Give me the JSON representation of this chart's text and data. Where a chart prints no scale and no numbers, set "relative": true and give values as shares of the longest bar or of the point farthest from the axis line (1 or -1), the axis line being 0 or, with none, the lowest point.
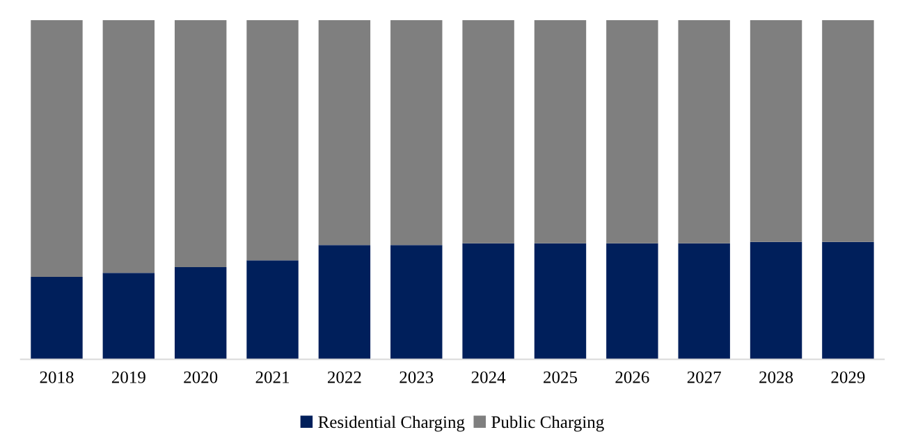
{
  "chart_data": {
    "type": "bar",
    "stacked": true,
    "relative": true,
    "categories": [
      "2018",
      "2019",
      "2020",
      "2021",
      "2022",
      "2023",
      "2024",
      "2025",
      "2026",
      "2027",
      "2028",
      "2029"
    ],
    "series": [
      {
        "name": "Residential Charging",
        "color": "#001f5b",
        "values": [
          0.243,
          0.255,
          0.272,
          0.292,
          0.337,
          0.337,
          0.342,
          0.342,
          0.342,
          0.342,
          0.346,
          0.346
        ]
      },
      {
        "name": "Public Charging",
        "color": "#7f7f7f",
        "values": [
          0.757,
          0.745,
          0.728,
          0.708,
          0.663,
          0.663,
          0.658,
          0.658,
          0.658,
          0.658,
          0.654,
          0.654
        ]
      }
    ],
    "legend": "bottom",
    "grid": false
  }
}
